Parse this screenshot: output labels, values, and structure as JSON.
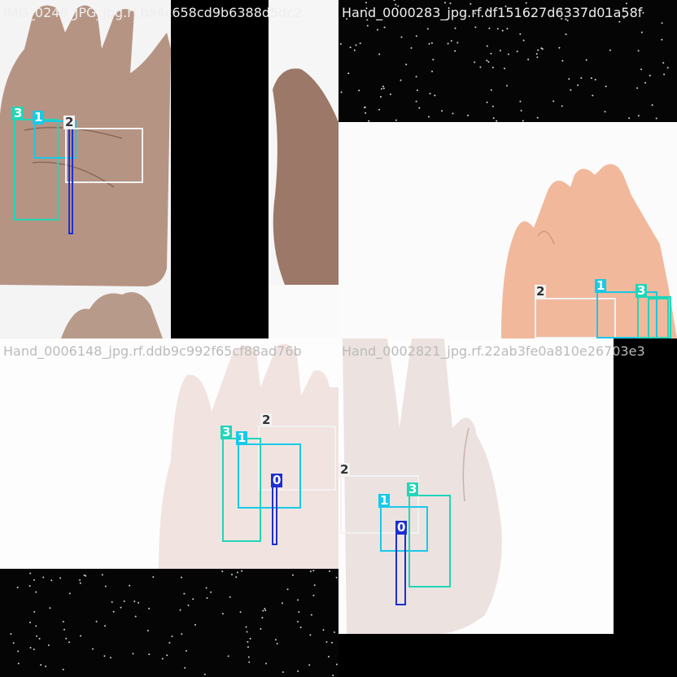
{
  "tiles": [
    {
      "caption": "IMG_0246_JPG_jpg.rf.ba4c658cd9b6388d5dc2"
    },
    {
      "caption": "Hand_0000283_jpg.rf.df151627d6337d01a58f"
    },
    {
      "caption": "Hand_0006148_jpg.rf.ddb9c992f65cf88ad76b"
    },
    {
      "caption": "Hand_0002821_jpg.rf.22ab3fe0a810e26703e3"
    }
  ],
  "class_colors": {
    "0": "#1e2fd0",
    "1": "#18c9e8",
    "2": "#f2f2f2",
    "3": "#20d6b8"
  },
  "labels": {
    "c0": "0",
    "c1": "1",
    "c2": "2",
    "c3": "3"
  }
}
